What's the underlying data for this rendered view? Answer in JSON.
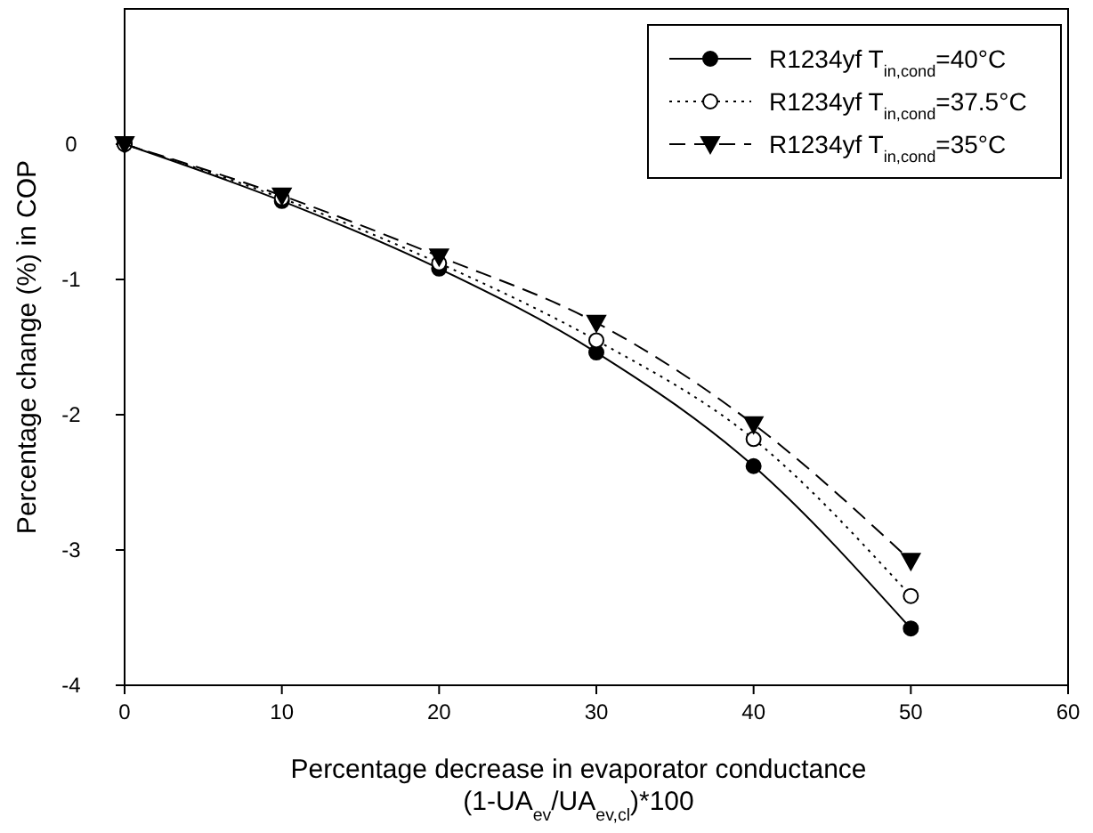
{
  "chart_data": {
    "type": "line",
    "xlabel": "Percentage decrease in evaporator conductance\n(1-UA$_{ev}$/UA$_{ev,cl}$)*100",
    "ylabel": "Percentage change (%) in COP",
    "x": [
      0,
      10,
      20,
      30,
      40,
      50
    ],
    "xlim": [
      0,
      60
    ],
    "xticks": [
      0,
      10,
      20,
      30,
      40,
      50,
      60
    ],
    "ylim": [
      -4,
      1
    ],
    "yticks": [
      -4,
      -3,
      -2,
      -1,
      0
    ],
    "legend": "top right",
    "grid": false,
    "series": [
      {
        "name": "R1234yf T$_{in,cond}$=40°C",
        "color": "#000000",
        "values": [
          0,
          -0.42,
          -0.92,
          -1.54,
          -2.38,
          -3.58
        ],
        "marker": "circle",
        "line_style": "solid"
      },
      {
        "name": "R1234yf T$_{in,cond}$=37.5°C",
        "color": "#000000",
        "values": [
          0,
          -0.4,
          -0.88,
          -1.45,
          -2.18,
          -3.34
        ],
        "marker": "circle-open",
        "line_style": "dotted"
      },
      {
        "name": "R1234yf T$_{in,cond}$=35°C",
        "color": "#000000",
        "values": [
          0,
          -0.38,
          -0.83,
          -1.32,
          -2.07,
          -3.08
        ],
        "marker": "triangle",
        "line_style": "dashed"
      }
    ]
  }
}
